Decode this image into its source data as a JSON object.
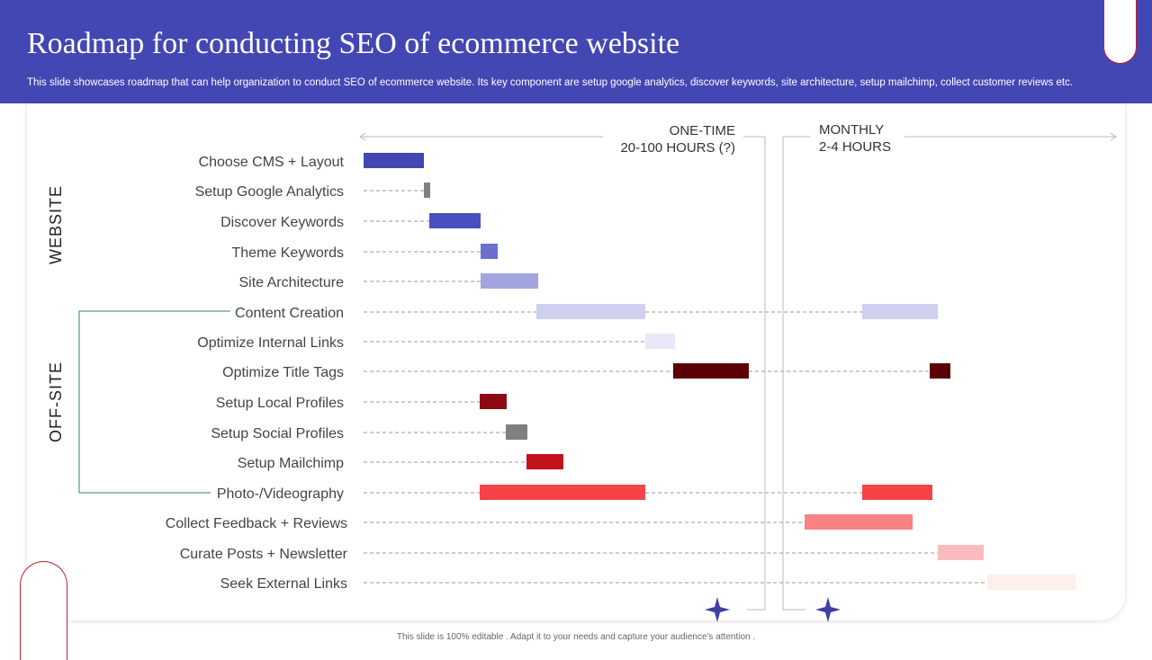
{
  "header": {
    "title": "Roadmap for conducting SEO of ecommerce website",
    "subtitle": "This slide showcases roadmap that can help organization to conduct SEO of ecommerce website. Its key component are setup google analytics, discover keywords, site architecture, setup mailchimp, collect customer reviews etc."
  },
  "phases": {
    "one_time": {
      "line1": "ONE-TIME",
      "line2": "20-100 HOURS (?)"
    },
    "monthly": {
      "line1": "MONTHLY",
      "line2": "2-4 HOURS"
    }
  },
  "groups": {
    "website": "WEBSITE",
    "offsite": "OFF-SITE"
  },
  "tasks": [
    {
      "label": "Choose CMS + Layout",
      "bars": [
        {
          "color": "#4347b3"
        }
      ]
    },
    {
      "label": "Setup Google Analytics",
      "bars": [
        {
          "color": "#808080"
        }
      ]
    },
    {
      "label": "Discover Keywords",
      "bars": [
        {
          "color": "#4a4fc0"
        }
      ]
    },
    {
      "label": "Theme Keywords",
      "bars": [
        {
          "color": "#6b6fcf"
        }
      ]
    },
    {
      "label": "Site Architecture",
      "bars": [
        {
          "color": "#a2a4de"
        }
      ]
    },
    {
      "label": "Content Creation",
      "bars": [
        {
          "color": "#cfd0ef"
        },
        {
          "color": "#cfd0ef"
        }
      ]
    },
    {
      "label": "Optimize Internal  Links",
      "bars": [
        {
          "color": "#e8e8f8"
        }
      ]
    },
    {
      "label": "Optimize Title Tags",
      "bars": [
        {
          "color": "#5c0008"
        },
        {
          "color": "#5c0008"
        }
      ]
    },
    {
      "label": "Setup Local Profiles",
      "bars": [
        {
          "color": "#8e0a12"
        }
      ]
    },
    {
      "label": "Setup Social Profiles",
      "bars": [
        {
          "color": "#7f7f7f"
        }
      ]
    },
    {
      "label": "Setup Mailchimp",
      "bars": [
        {
          "color": "#c3121c"
        }
      ]
    },
    {
      "label": "Photo-/Videography",
      "bars": [
        {
          "color": "#f64347"
        },
        {
          "color": "#f64347"
        }
      ]
    },
    {
      "label": "Collect Feedback + Reviews",
      "bars": [
        {
          "color": "#f98282"
        }
      ]
    },
    {
      "label": "Curate Posts + Newsletter",
      "bars": [
        {
          "color": "#fbbcbd"
        }
      ]
    },
    {
      "label": "Seek External Links",
      "bars": [
        {
          "color": "#fdf0ea"
        }
      ]
    }
  ],
  "footer": {
    "note": "This slide is 100% editable . Adapt it to your needs and capture your audience's attention ."
  },
  "icons": {
    "star": "four-point-star-icon",
    "star_color": "#3d3fa3"
  }
}
